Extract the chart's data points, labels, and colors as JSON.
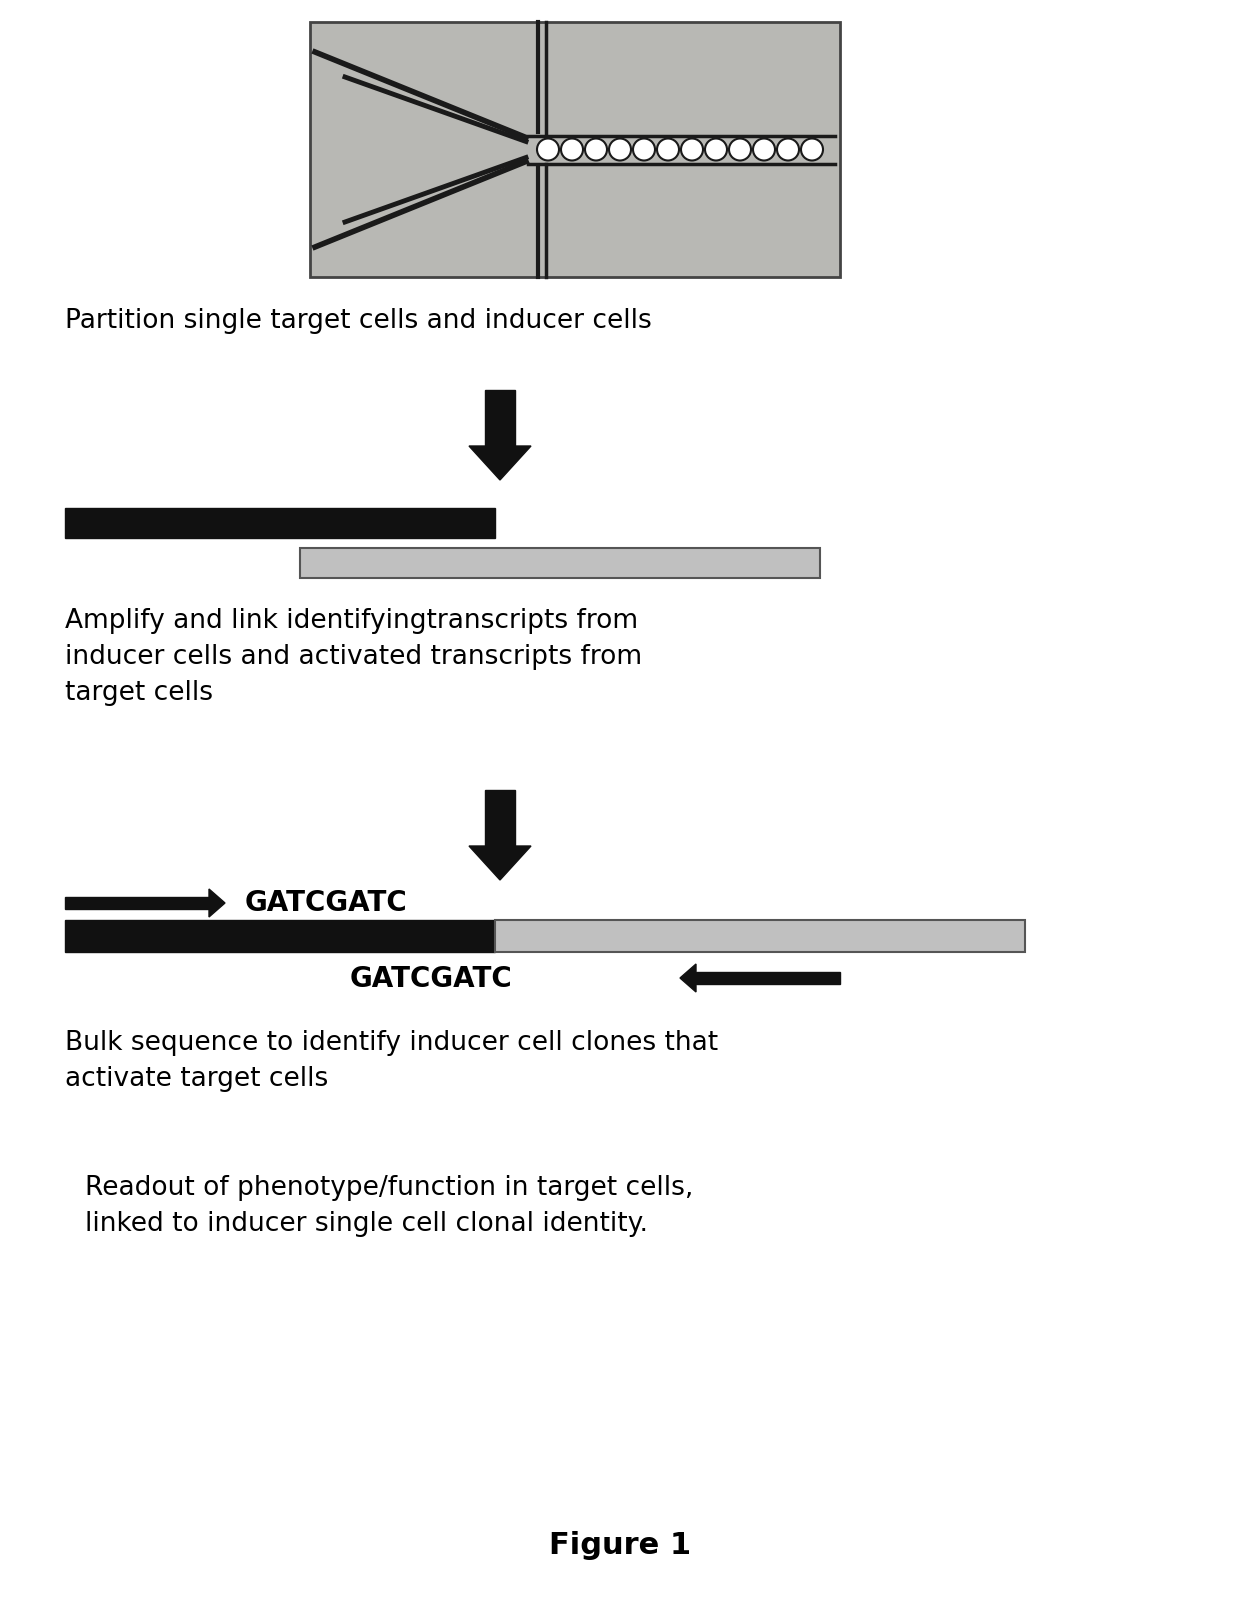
{
  "bg_color": "#ffffff",
  "text_color": "#000000",
  "dark_bar_color": "#111111",
  "light_bar_color": "#c0c0c0",
  "arrow_color": "#111111",
  "step1_text": "Partition single target cells and inducer cells",
  "step2_text": "Amplify and link identifyingtranscripts from\ninducer cells and activated transcripts from\ntarget cells",
  "step3_text_top": "GATCGATC",
  "step3_text_bot": "GATCGATC",
  "step4_text": "Bulk sequence to identify inducer cell clones that\nactivate target cells",
  "step5_text": "Readout of phenotype/function in target cells,\nlinked to inducer single cell clonal identity.",
  "figure_label": "Figure 1",
  "font_size_main": 19,
  "font_size_seq": 20,
  "font_size_fig": 22
}
